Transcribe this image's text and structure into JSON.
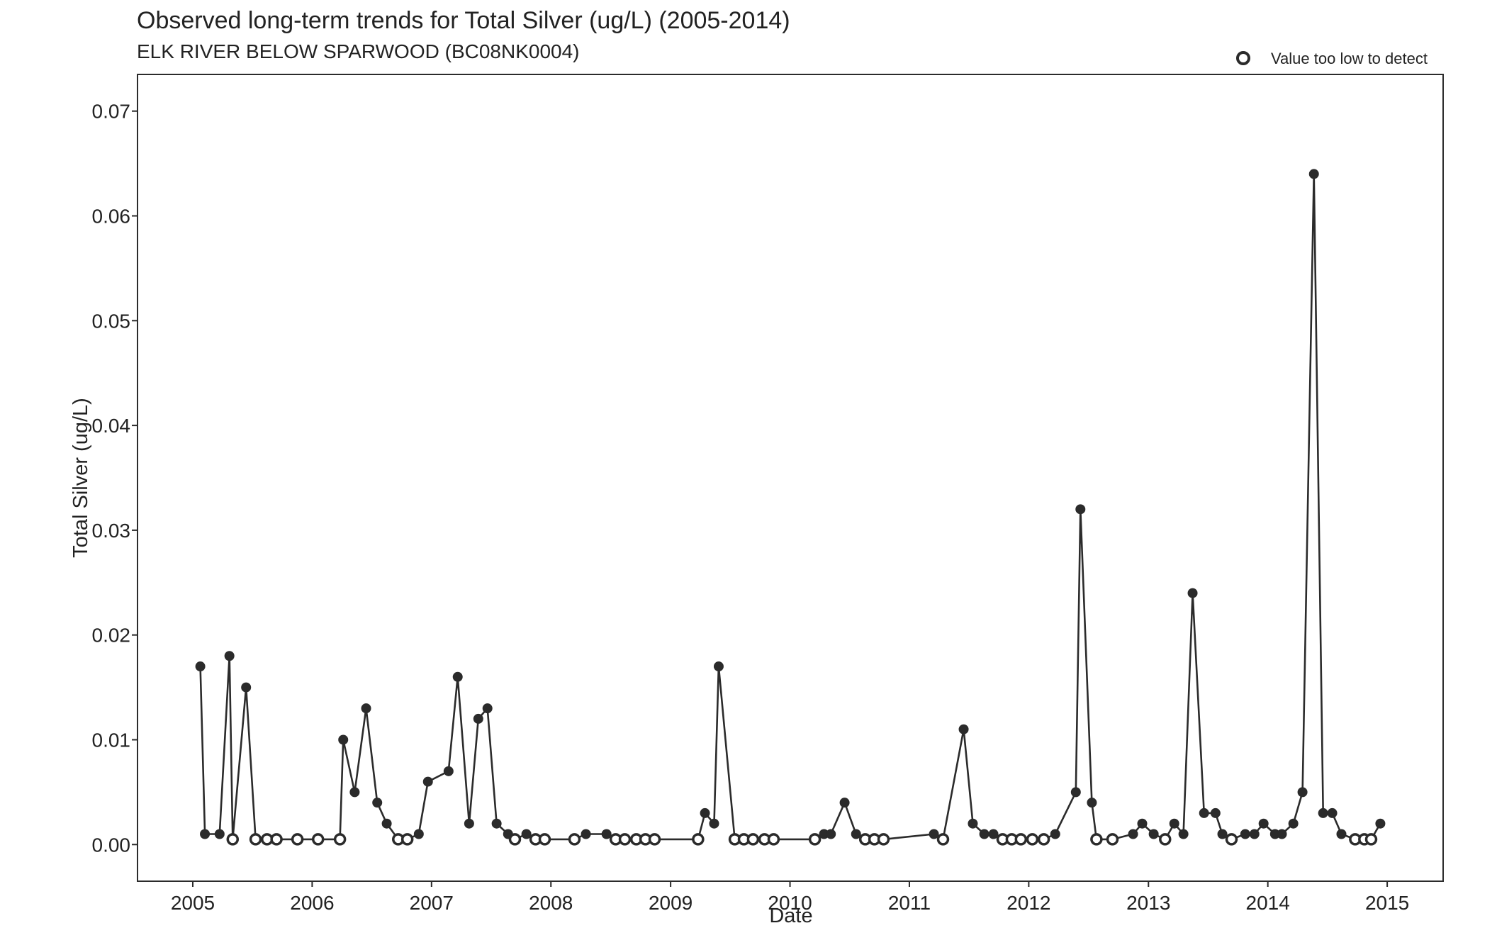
{
  "chart_data": {
    "type": "line",
    "title": "Observed long-term trends for Total Silver (ug/L) (2005-2014)",
    "subtitle": "ELK RIVER BELOW SPARWOOD (BC08NK0004)",
    "xlabel": "Date",
    "ylabel": "Total Silver (ug/L)",
    "x_ticks": [
      "2005",
      "2006",
      "2007",
      "2008",
      "2009",
      "2010",
      "2011",
      "2012",
      "2013",
      "2014",
      "2015"
    ],
    "y_ticks": [
      "0.00",
      "0.01",
      "0.02",
      "0.03",
      "0.04",
      "0.05",
      "0.06",
      "0.07"
    ],
    "xlim": [
      "2004-07-16",
      "2015-06-21"
    ],
    "ylim": [
      -0.0035,
      0.0735
    ],
    "grid": false,
    "legend": {
      "placement": "top-right",
      "entries": [
        {
          "marker": "open-circle",
          "label": "Value too low to detect"
        }
      ]
    },
    "colors": {
      "line": "#2b2b2b",
      "marker": "#2b2b2b",
      "axis": "#2b2b2b"
    },
    "series": [
      {
        "points": [
          {
            "date": "2005-01-24",
            "value": 0.017,
            "detected": true
          },
          {
            "date": "2005-02-07",
            "value": 0.001,
            "detected": true
          },
          {
            "date": "2005-03-24",
            "value": 0.001,
            "detected": true
          },
          {
            "date": "2005-04-23",
            "value": 0.018,
            "detected": true
          },
          {
            "date": "2005-05-03",
            "value": 0.0005,
            "detected": false
          },
          {
            "date": "2005-06-13",
            "value": 0.015,
            "detected": true
          },
          {
            "date": "2005-07-12",
            "value": 0.0005,
            "detected": false
          },
          {
            "date": "2005-08-16",
            "value": 0.0005,
            "detected": false
          },
          {
            "date": "2005-09-14",
            "value": 0.0005,
            "detected": false
          },
          {
            "date": "2005-11-17",
            "value": 0.0005,
            "detected": false
          },
          {
            "date": "2006-01-19",
            "value": 0.0005,
            "detected": false
          },
          {
            "date": "2006-03-27",
            "value": 0.0005,
            "detected": false
          },
          {
            "date": "2006-04-06",
            "value": 0.01,
            "detected": true
          },
          {
            "date": "2006-05-11",
            "value": 0.005,
            "detected": true
          },
          {
            "date": "2006-06-15",
            "value": 0.013,
            "detected": true
          },
          {
            "date": "2006-07-19",
            "value": 0.004,
            "detected": true
          },
          {
            "date": "2006-08-17",
            "value": 0.002,
            "detected": true
          },
          {
            "date": "2006-09-21",
            "value": 0.0005,
            "detected": false
          },
          {
            "date": "2006-10-19",
            "value": 0.0005,
            "detected": false
          },
          {
            "date": "2006-11-23",
            "value": 0.001,
            "detected": true
          },
          {
            "date": "2006-12-21",
            "value": 0.006,
            "detected": true
          },
          {
            "date": "2007-02-22",
            "value": 0.007,
            "detected": true
          },
          {
            "date": "2007-03-22",
            "value": 0.016,
            "detected": true
          },
          {
            "date": "2007-04-26",
            "value": 0.002,
            "detected": true
          },
          {
            "date": "2007-05-24",
            "value": 0.012,
            "detected": true
          },
          {
            "date": "2007-06-21",
            "value": 0.013,
            "detected": true
          },
          {
            "date": "2007-07-19",
            "value": 0.002,
            "detected": true
          },
          {
            "date": "2007-08-23",
            "value": 0.001,
            "detected": true
          },
          {
            "date": "2007-09-13",
            "value": 0.0005,
            "detected": false
          },
          {
            "date": "2007-10-18",
            "value": 0.001,
            "detected": true
          },
          {
            "date": "2007-11-15",
            "value": 0.0005,
            "detected": false
          },
          {
            "date": "2007-12-13",
            "value": 0.0005,
            "detected": false
          },
          {
            "date": "2008-03-13",
            "value": 0.0005,
            "detected": false
          },
          {
            "date": "2008-04-17",
            "value": 0.001,
            "detected": true
          },
          {
            "date": "2008-06-19",
            "value": 0.001,
            "detected": true
          },
          {
            "date": "2008-07-17",
            "value": 0.0005,
            "detected": false
          },
          {
            "date": "2008-08-14",
            "value": 0.0005,
            "detected": false
          },
          {
            "date": "2008-09-18",
            "value": 0.0005,
            "detected": false
          },
          {
            "date": "2008-10-16",
            "value": 0.0005,
            "detected": false
          },
          {
            "date": "2008-11-13",
            "value": 0.0005,
            "detected": false
          },
          {
            "date": "2009-03-26",
            "value": 0.0005,
            "detected": false
          },
          {
            "date": "2009-04-16",
            "value": 0.003,
            "detected": true
          },
          {
            "date": "2009-05-14",
            "value": 0.002,
            "detected": true
          },
          {
            "date": "2009-05-28",
            "value": 0.017,
            "detected": true
          },
          {
            "date": "2009-07-16",
            "value": 0.0005,
            "detected": false
          },
          {
            "date": "2009-08-13",
            "value": 0.0005,
            "detected": false
          },
          {
            "date": "2009-09-10",
            "value": 0.0005,
            "detected": false
          },
          {
            "date": "2009-10-15",
            "value": 0.0005,
            "detected": false
          },
          {
            "date": "2009-11-12",
            "value": 0.0005,
            "detected": false
          },
          {
            "date": "2010-03-18",
            "value": 0.0005,
            "detected": false
          },
          {
            "date": "2010-04-15",
            "value": 0.001,
            "detected": true
          },
          {
            "date": "2010-05-06",
            "value": 0.001,
            "detected": true
          },
          {
            "date": "2010-06-17",
            "value": 0.004,
            "detected": true
          },
          {
            "date": "2010-07-22",
            "value": 0.001,
            "detected": true
          },
          {
            "date": "2010-08-19",
            "value": 0.0005,
            "detected": false
          },
          {
            "date": "2010-09-16",
            "value": 0.0005,
            "detected": false
          },
          {
            "date": "2010-10-14",
            "value": 0.0005,
            "detected": false
          },
          {
            "date": "2011-03-17",
            "value": 0.001,
            "detected": true
          },
          {
            "date": "2011-04-14",
            "value": 0.0005,
            "detected": false
          },
          {
            "date": "2011-06-16",
            "value": 0.011,
            "detected": true
          },
          {
            "date": "2011-07-14",
            "value": 0.002,
            "detected": true
          },
          {
            "date": "2011-08-18",
            "value": 0.001,
            "detected": true
          },
          {
            "date": "2011-09-15",
            "value": 0.001,
            "detected": true
          },
          {
            "date": "2011-10-13",
            "value": 0.0005,
            "detected": false
          },
          {
            "date": "2011-11-10",
            "value": 0.0005,
            "detected": false
          },
          {
            "date": "2011-12-08",
            "value": 0.0005,
            "detected": false
          },
          {
            "date": "2012-01-12",
            "value": 0.0005,
            "detected": false
          },
          {
            "date": "2012-02-16",
            "value": 0.0005,
            "detected": false
          },
          {
            "date": "2012-03-22",
            "value": 0.001,
            "detected": true
          },
          {
            "date": "2012-05-24",
            "value": 0.005,
            "detected": true
          },
          {
            "date": "2012-06-07",
            "value": 0.032,
            "detected": true
          },
          {
            "date": "2012-07-12",
            "value": 0.004,
            "detected": true
          },
          {
            "date": "2012-07-26",
            "value": 0.0005,
            "detected": false
          },
          {
            "date": "2012-09-13",
            "value": 0.0005,
            "detected": false
          },
          {
            "date": "2012-11-15",
            "value": 0.001,
            "detected": true
          },
          {
            "date": "2012-12-13",
            "value": 0.002,
            "detected": true
          },
          {
            "date": "2013-01-17",
            "value": 0.001,
            "detected": true
          },
          {
            "date": "2013-02-21",
            "value": 0.0005,
            "detected": false
          },
          {
            "date": "2013-03-21",
            "value": 0.002,
            "detected": true
          },
          {
            "date": "2013-04-18",
            "value": 0.001,
            "detected": true
          },
          {
            "date": "2013-05-16",
            "value": 0.024,
            "detected": true
          },
          {
            "date": "2013-06-20",
            "value": 0.003,
            "detected": true
          },
          {
            "date": "2013-07-25",
            "value": 0.003,
            "detected": true
          },
          {
            "date": "2013-08-15",
            "value": 0.001,
            "detected": true
          },
          {
            "date": "2013-09-12",
            "value": 0.0005,
            "detected": false
          },
          {
            "date": "2013-10-24",
            "value": 0.001,
            "detected": true
          },
          {
            "date": "2013-11-21",
            "value": 0.001,
            "detected": true
          },
          {
            "date": "2013-12-19",
            "value": 0.002,
            "detected": true
          },
          {
            "date": "2014-01-23",
            "value": 0.001,
            "detected": true
          },
          {
            "date": "2014-02-13",
            "value": 0.001,
            "detected": true
          },
          {
            "date": "2014-03-20",
            "value": 0.002,
            "detected": true
          },
          {
            "date": "2014-04-17",
            "value": 0.005,
            "detected": true
          },
          {
            "date": "2014-05-22",
            "value": 0.064,
            "detected": true
          },
          {
            "date": "2014-06-19",
            "value": 0.003,
            "detected": true
          },
          {
            "date": "2014-07-17",
            "value": 0.003,
            "detected": true
          },
          {
            "date": "2014-08-14",
            "value": 0.001,
            "detected": true
          },
          {
            "date": "2014-09-25",
            "value": 0.0005,
            "detected": false
          },
          {
            "date": "2014-10-23",
            "value": 0.0005,
            "detected": false
          },
          {
            "date": "2014-11-13",
            "value": 0.0005,
            "detected": false
          },
          {
            "date": "2014-12-11",
            "value": 0.002,
            "detected": true
          }
        ]
      }
    ]
  }
}
